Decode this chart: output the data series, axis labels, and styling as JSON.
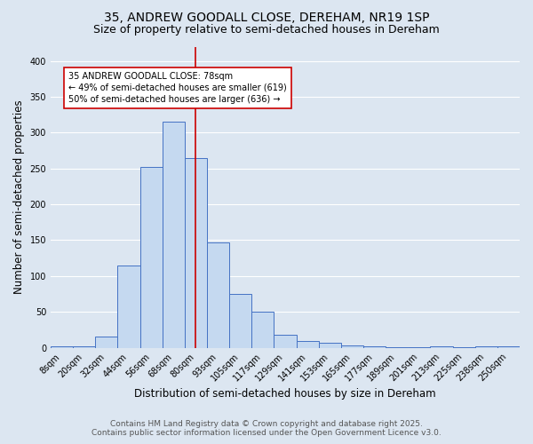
{
  "title_line1": "35, ANDREW GOODALL CLOSE, DEREHAM, NR19 1SP",
  "title_line2": "Size of property relative to semi-detached houses in Dereham",
  "categories": [
    "8sqm",
    "20sqm",
    "32sqm",
    "44sqm",
    "56sqm",
    "68sqm",
    "80sqm",
    "93sqm",
    "105sqm",
    "117sqm",
    "129sqm",
    "141sqm",
    "153sqm",
    "165sqm",
    "177sqm",
    "189sqm",
    "201sqm",
    "213sqm",
    "225sqm",
    "238sqm",
    "250sqm"
  ],
  "values": [
    2,
    2,
    15,
    115,
    252,
    315,
    265,
    147,
    75,
    50,
    18,
    9,
    7,
    3,
    2,
    1,
    1,
    2,
    1,
    2,
    2
  ],
  "bar_color": "#c5d9f0",
  "bar_edge_color": "#4472c4",
  "background_color": "#dce6f1",
  "grid_color": "#ffffff",
  "ylabel": "Number of semi-detached properties",
  "xlabel": "Distribution of semi-detached houses by size in Dereham",
  "ylim": [
    0,
    420
  ],
  "yticks": [
    0,
    50,
    100,
    150,
    200,
    250,
    300,
    350,
    400
  ],
  "vline_x_index": 6,
  "vline_color": "#cc0000",
  "annotation_text": "35 ANDREW GOODALL CLOSE: 78sqm\n← 49% of semi-detached houses are smaller (619)\n50% of semi-detached houses are larger (636) →",
  "footer_line1": "Contains HM Land Registry data © Crown copyright and database right 2025.",
  "footer_line2": "Contains public sector information licensed under the Open Government Licence v3.0.",
  "title_fontsize": 10,
  "subtitle_fontsize": 9,
  "tick_fontsize": 7,
  "label_fontsize": 8.5,
  "footer_fontsize": 6.5,
  "annot_fontsize": 7
}
